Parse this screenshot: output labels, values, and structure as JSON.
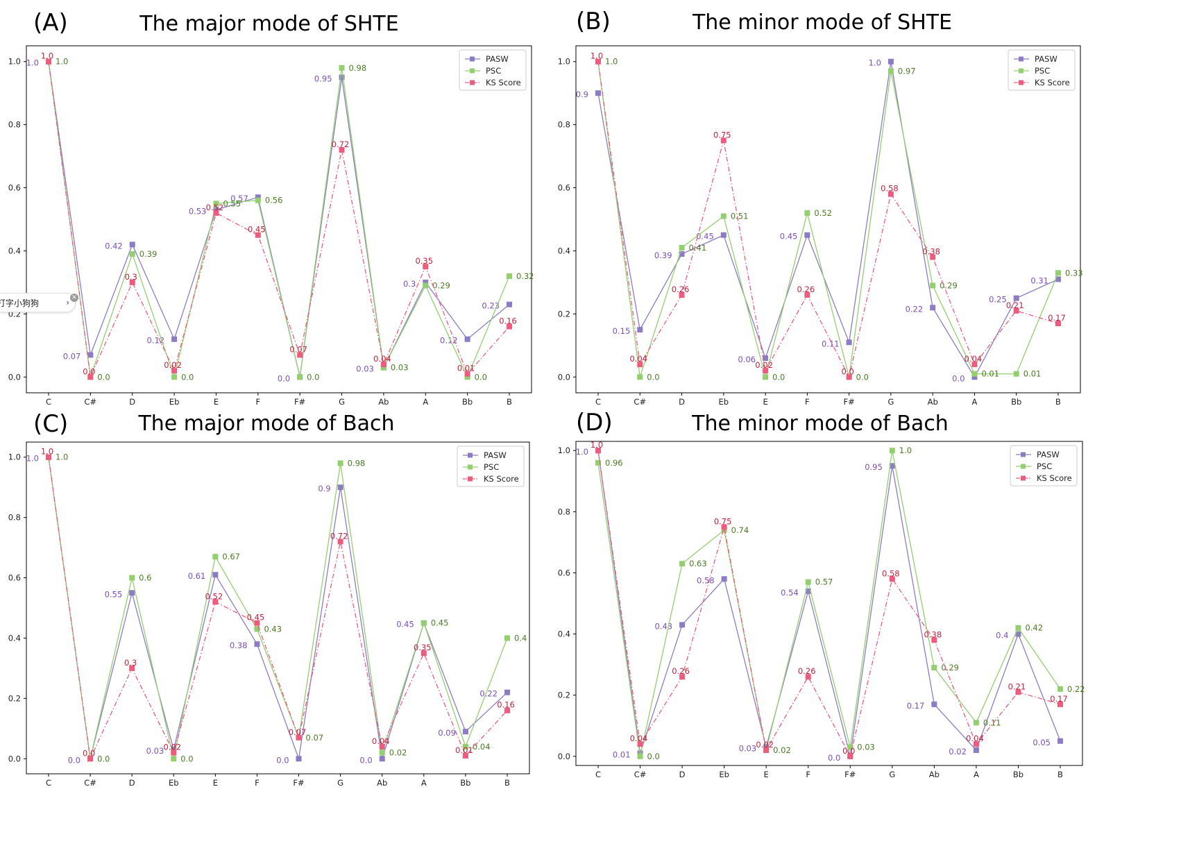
{
  "colors": {
    "PASW": "#8c7cc4",
    "PSC": "#93cf6f",
    "KS Score": "#ec5c7e",
    "PASW_label": "#7a4fb8",
    "PSC_label": "#4a7a22",
    "KS_label": "#c0203d"
  },
  "overlay": {
    "text": "打字小狗狗",
    "chevron": "›",
    "close": "×"
  },
  "chart_data": [
    {
      "panel": "(A)",
      "title": "The major mode of SHTE",
      "type": "line",
      "categories": [
        "C",
        "C#",
        "D",
        "Eb",
        "E",
        "F",
        "F#",
        "G",
        "Ab",
        "A",
        "Bb",
        "B"
      ],
      "ylim": [
        -0.05,
        1.05
      ],
      "yticks": [
        "0.0",
        "0.2",
        "0.4",
        "0.6",
        "0.8",
        "1.0"
      ],
      "legend_position": "top-right",
      "series": [
        {
          "name": "PASW",
          "style": "solid",
          "values": [
            1.0,
            0.07,
            0.42,
            0.12,
            0.53,
            0.57,
            0.0,
            0.95,
            0.03,
            0.3,
            0.12,
            0.23
          ],
          "labels": [
            "1.0",
            "0.07",
            "0.42",
            "0.12",
            "0.53",
            "0.57",
            "0.0",
            "0.95",
            "0.03",
            "0.3",
            "0.12",
            "0.23"
          ]
        },
        {
          "name": "PSC",
          "style": "solid",
          "values": [
            1.0,
            0.0,
            0.39,
            0.0,
            0.55,
            0.56,
            0.0,
            0.98,
            0.03,
            0.29,
            0.0,
            0.32
          ],
          "labels": [
            "1.0",
            "0.0",
            "0.39",
            "0.0",
            "0.55",
            "0.56",
            "0.0",
            "0.98",
            "0.03",
            "0.29",
            "0.0",
            "0.32"
          ]
        },
        {
          "name": "KS Score",
          "style": "dashdot",
          "values": [
            1.0,
            0.0,
            0.3,
            0.02,
            0.52,
            0.45,
            0.07,
            0.72,
            0.04,
            0.35,
            0.01,
            0.16
          ],
          "labels": [
            "1.0",
            "0.0",
            "0.3",
            "0.02",
            "0.52",
            "0.45",
            "0.07",
            "0.72",
            "0.04",
            "0.35",
            "0.01",
            "0.16"
          ]
        }
      ]
    },
    {
      "panel": "(B)",
      "title": "The minor mode of SHTE",
      "type": "line",
      "categories": [
        "C",
        "C#",
        "D",
        "Eb",
        "E",
        "F",
        "F#",
        "G",
        "Ab",
        "A",
        "Bb",
        "B"
      ],
      "ylim": [
        -0.05,
        1.05
      ],
      "yticks": [
        "0.0",
        "0.2",
        "0.4",
        "0.6",
        "0.8",
        "1.0"
      ],
      "legend_position": "top-right",
      "series": [
        {
          "name": "PASW",
          "style": "solid",
          "values": [
            0.9,
            0.15,
            0.39,
            0.45,
            0.06,
            0.45,
            0.11,
            1.0,
            0.22,
            0.0,
            0.25,
            0.31
          ],
          "labels": [
            "0.9",
            "0.15",
            "0.39",
            "0.45",
            "0.06",
            "0.45",
            "0.11",
            "1.0",
            "0.22",
            "0.0",
            "0.25",
            "0.31"
          ]
        },
        {
          "name": "PSC",
          "style": "solid",
          "values": [
            1.0,
            0.0,
            0.41,
            0.51,
            0.0,
            0.52,
            0.0,
            0.97,
            0.29,
            0.01,
            0.01,
            0.33
          ],
          "labels": [
            "1.0",
            "0.0",
            "0.41",
            "0.51",
            "0.0",
            "0.52",
            "0.0",
            "0.97",
            "0.29",
            "0.01",
            "0.01",
            "0.33"
          ]
        },
        {
          "name": "KS Score",
          "style": "dashdot",
          "values": [
            1.0,
            0.04,
            0.26,
            0.75,
            0.02,
            0.26,
            0.0,
            0.58,
            0.38,
            0.04,
            0.21,
            0.17
          ],
          "labels": [
            "1.0",
            "0.04",
            "0.26",
            "0.75",
            "0.02",
            "0.26",
            "0.0",
            "0.58",
            "0.38",
            "0.04",
            "0.21",
            "0.17"
          ]
        }
      ]
    },
    {
      "panel": "(C)",
      "title": "The major mode of Bach",
      "type": "line",
      "categories": [
        "C",
        "C#",
        "D",
        "Eb",
        "E",
        "F",
        "F#",
        "G",
        "Ab",
        "A",
        "Bb",
        "B"
      ],
      "ylim": [
        -0.05,
        1.05
      ],
      "yticks": [
        "0.0",
        "0.2",
        "0.4",
        "0.6",
        "0.8",
        "1.0"
      ],
      "legend_position": "top-right",
      "series": [
        {
          "name": "PASW",
          "style": "solid",
          "values": [
            1.0,
            0.0,
            0.55,
            0.03,
            0.61,
            0.38,
            0.0,
            0.9,
            0.0,
            0.45,
            0.09,
            0.22
          ],
          "labels": [
            "1.0",
            "0.0",
            "0.55",
            "0.03",
            "0.61",
            "0.38",
            "0.0",
            "0.9",
            "0.0",
            "0.45",
            "0.09",
            "0.22"
          ]
        },
        {
          "name": "PSC",
          "style": "solid",
          "values": [
            1.0,
            0.0,
            0.6,
            0.0,
            0.67,
            0.43,
            0.07,
            0.98,
            0.02,
            0.45,
            0.04,
            0.4
          ],
          "labels": [
            "1.0",
            "0.0",
            "0.6",
            "0.0",
            "0.67",
            "0.43",
            "0.07",
            "0.98",
            "0.02",
            "0.45",
            "0.04",
            "0.4"
          ]
        },
        {
          "name": "KS Score",
          "style": "dashdot",
          "values": [
            1.0,
            0.0,
            0.3,
            0.02,
            0.52,
            0.45,
            0.07,
            0.72,
            0.04,
            0.35,
            0.01,
            0.16
          ],
          "labels": [
            "1.0",
            "0.0",
            "0.3",
            "0.02",
            "0.52",
            "0.45",
            "0.07",
            "0.72",
            "0.04",
            "0.35",
            "0.01",
            "0.16"
          ]
        }
      ]
    },
    {
      "panel": "(D)",
      "title": "The minor mode of Bach",
      "type": "line",
      "categories": [
        "C",
        "C#",
        "D",
        "Eb",
        "E",
        "F",
        "F#",
        "G",
        "Ab",
        "A",
        "Bb",
        "B"
      ],
      "ylim": [
        -0.03,
        1.03
      ],
      "yticks": [
        "0.0",
        "0.2",
        "0.4",
        "0.6",
        "0.8",
        "1.0"
      ],
      "legend_position": "top-right",
      "series": [
        {
          "name": "PASW",
          "style": "solid",
          "values": [
            1.0,
            0.01,
            0.43,
            0.58,
            0.03,
            0.54,
            0.0,
            0.95,
            0.17,
            0.02,
            0.4,
            0.05
          ],
          "labels": [
            "1.0",
            "0.01",
            "0.43",
            "0.58",
            "0.03",
            "0.54",
            "0.0",
            "0.95",
            "0.17",
            "0.02",
            "0.4",
            "0.05"
          ]
        },
        {
          "name": "PSC",
          "style": "solid",
          "values": [
            0.96,
            0.0,
            0.63,
            0.74,
            0.02,
            0.57,
            0.03,
            1.0,
            0.29,
            0.11,
            0.42,
            0.22
          ],
          "labels": [
            "0.96",
            "0.0",
            "0.63",
            "0.74",
            "0.02",
            "0.57",
            "0.03",
            "1.0",
            "0.29",
            "0.11",
            "0.42",
            "0.22"
          ]
        },
        {
          "name": "KS Score",
          "style": "dashdot",
          "values": [
            1.0,
            0.04,
            0.26,
            0.75,
            0.02,
            0.26,
            0.0,
            0.58,
            0.38,
            0.04,
            0.21,
            0.17
          ],
          "labels": [
            "1.0",
            "0.04",
            "0.26",
            "0.75",
            "0.02",
            "0.26",
            "0.0",
            "0.58",
            "0.38",
            "0.04",
            "0.21",
            "0.17"
          ]
        }
      ]
    }
  ]
}
